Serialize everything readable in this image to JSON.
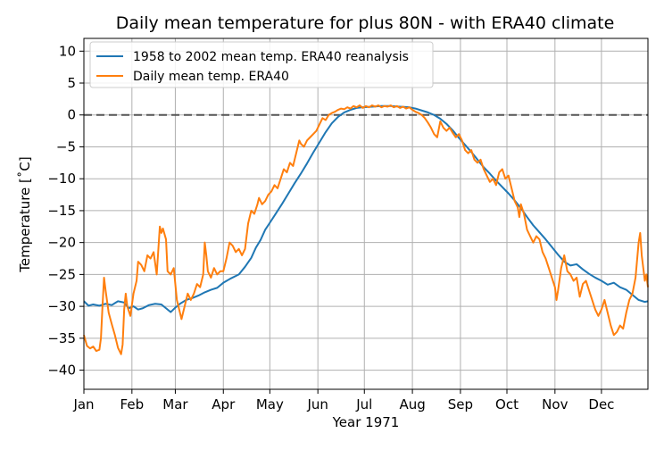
{
  "chart_data": {
    "type": "line",
    "title": "Daily mean temperature for plus 80N - with ERA40 climate",
    "xlabel": "Year 1971",
    "ylabel": "Temperature [$^\\circ$C]",
    "ylabel_display": "Temperature [˚C]",
    "xlim": [
      0,
      364
    ],
    "ylim": [
      -43,
      12
    ],
    "x_ticks": [
      {
        "day": 0,
        "label": "Jan"
      },
      {
        "day": 31,
        "label": "Feb"
      },
      {
        "day": 59,
        "label": "Mar"
      },
      {
        "day": 90,
        "label": "Apr"
      },
      {
        "day": 120,
        "label": "May"
      },
      {
        "day": 151,
        "label": "Jun"
      },
      {
        "day": 181,
        "label": "Jul"
      },
      {
        "day": 212,
        "label": "Aug"
      },
      {
        "day": 243,
        "label": "Sep"
      },
      {
        "day": 273,
        "label": "Oct"
      },
      {
        "day": 304,
        "label": "Nov"
      },
      {
        "day": 334,
        "label": "Dec"
      }
    ],
    "y_ticks": [
      10,
      5,
      0,
      -5,
      -10,
      -15,
      -20,
      -25,
      -30,
      -35,
      -40
    ],
    "grid": true,
    "legend_position": "upper-left",
    "reference_line": {
      "y": 0,
      "style": "dashed",
      "color": "#555555"
    },
    "series": [
      {
        "name": "1958 to 2002 mean temp. ERA40 reanalysis",
        "color": "#1f77b4",
        "points": [
          [
            0,
            -29.2
          ],
          [
            3,
            -29.9
          ],
          [
            6,
            -29.7
          ],
          [
            10,
            -29.9
          ],
          [
            14,
            -29.6
          ],
          [
            18,
            -29.8
          ],
          [
            22,
            -29.2
          ],
          [
            26,
            -29.4
          ],
          [
            29,
            -30.3
          ],
          [
            32,
            -30.0
          ],
          [
            35,
            -30.5
          ],
          [
            38,
            -30.3
          ],
          [
            42,
            -29.8
          ],
          [
            46,
            -29.6
          ],
          [
            50,
            -29.7
          ],
          [
            53,
            -30.3
          ],
          [
            56,
            -30.9
          ],
          [
            59,
            -30.2
          ],
          [
            62,
            -29.6
          ],
          [
            66,
            -29.0
          ],
          [
            70,
            -28.7
          ],
          [
            74,
            -28.3
          ],
          [
            78,
            -27.8
          ],
          [
            82,
            -27.4
          ],
          [
            86,
            -27.1
          ],
          [
            90,
            -26.3
          ],
          [
            95,
            -25.6
          ],
          [
            100,
            -25.0
          ],
          [
            104,
            -23.8
          ],
          [
            108,
            -22.4
          ],
          [
            111,
            -20.8
          ],
          [
            114,
            -19.6
          ],
          [
            117,
            -18.0
          ],
          [
            120,
            -16.9
          ],
          [
            124,
            -15.4
          ],
          [
            128,
            -13.9
          ],
          [
            132,
            -12.3
          ],
          [
            136,
            -10.7
          ],
          [
            140,
            -9.2
          ],
          [
            144,
            -7.6
          ],
          [
            148,
            -5.9
          ],
          [
            152,
            -4.3
          ],
          [
            156,
            -2.7
          ],
          [
            160,
            -1.3
          ],
          [
            164,
            -0.3
          ],
          [
            168,
            0.4
          ],
          [
            172,
            0.8
          ],
          [
            176,
            1.1
          ],
          [
            180,
            1.2
          ],
          [
            186,
            1.3
          ],
          [
            192,
            1.4
          ],
          [
            198,
            1.4
          ],
          [
            204,
            1.3
          ],
          [
            210,
            1.2
          ],
          [
            214,
            1.0
          ],
          [
            218,
            0.7
          ],
          [
            222,
            0.4
          ],
          [
            226,
            0.0
          ],
          [
            230,
            -0.6
          ],
          [
            234,
            -1.4
          ],
          [
            238,
            -2.4
          ],
          [
            242,
            -3.6
          ],
          [
            246,
            -4.7
          ],
          [
            250,
            -5.8
          ],
          [
            254,
            -7.0
          ],
          [
            258,
            -8.2
          ],
          [
            262,
            -9.2
          ],
          [
            266,
            -10.3
          ],
          [
            270,
            -11.3
          ],
          [
            274,
            -12.3
          ],
          [
            278,
            -13.4
          ],
          [
            282,
            -14.6
          ],
          [
            286,
            -16.0
          ],
          [
            290,
            -17.3
          ],
          [
            294,
            -18.4
          ],
          [
            298,
            -19.5
          ],
          [
            302,
            -20.7
          ],
          [
            306,
            -21.9
          ],
          [
            310,
            -23.0
          ],
          [
            314,
            -23.6
          ],
          [
            318,
            -23.4
          ],
          [
            322,
            -24.2
          ],
          [
            326,
            -24.9
          ],
          [
            330,
            -25.5
          ],
          [
            334,
            -26.0
          ],
          [
            338,
            -26.6
          ],
          [
            342,
            -26.3
          ],
          [
            346,
            -27.0
          ],
          [
            350,
            -27.4
          ],
          [
            354,
            -28.2
          ],
          [
            358,
            -29.0
          ],
          [
            362,
            -29.3
          ],
          [
            364,
            -29.2
          ]
        ]
      },
      {
        "name": "Daily mean temp. ERA40",
        "color": "#ff7f0e",
        "points": [
          [
            0,
            -34.5
          ],
          [
            2,
            -36.2
          ],
          [
            4,
            -36.6
          ],
          [
            6,
            -36.3
          ],
          [
            8,
            -37.0
          ],
          [
            10,
            -36.8
          ],
          [
            11,
            -35.0
          ],
          [
            12,
            -30.0
          ],
          [
            13,
            -25.5
          ],
          [
            14,
            -27.5
          ],
          [
            16,
            -31.0
          ],
          [
            18,
            -32.8
          ],
          [
            20,
            -34.5
          ],
          [
            22,
            -36.5
          ],
          [
            24,
            -37.5
          ],
          [
            25,
            -36.0
          ],
          [
            26,
            -30.5
          ],
          [
            27,
            -28.0
          ],
          [
            28,
            -30.0
          ],
          [
            30,
            -31.5
          ],
          [
            32,
            -28.0
          ],
          [
            34,
            -26.0
          ],
          [
            35,
            -23.0
          ],
          [
            37,
            -23.5
          ],
          [
            39,
            -24.5
          ],
          [
            41,
            -22.0
          ],
          [
            43,
            -22.5
          ],
          [
            45,
            -21.5
          ],
          [
            47,
            -25.0
          ],
          [
            49,
            -17.5
          ],
          [
            50,
            -18.5
          ],
          [
            51,
            -17.8
          ],
          [
            53,
            -19.5
          ],
          [
            54,
            -24.5
          ],
          [
            56,
            -25.0
          ],
          [
            58,
            -24.0
          ],
          [
            60,
            -29.0
          ],
          [
            62,
            -31.0
          ],
          [
            63,
            -32.0
          ],
          [
            65,
            -30.0
          ],
          [
            67,
            -28.0
          ],
          [
            69,
            -29.0
          ],
          [
            71,
            -28.0
          ],
          [
            73,
            -26.5
          ],
          [
            75,
            -27.0
          ],
          [
            77,
            -25.0
          ],
          [
            78,
            -20.0
          ],
          [
            79,
            -22.0
          ],
          [
            80,
            -24.5
          ],
          [
            82,
            -25.5
          ],
          [
            84,
            -24.0
          ],
          [
            86,
            -25.0
          ],
          [
            88,
            -24.5
          ],
          [
            90,
            -24.5
          ],
          [
            92,
            -22.5
          ],
          [
            94,
            -20.0
          ],
          [
            96,
            -20.5
          ],
          [
            98,
            -21.5
          ],
          [
            100,
            -21.0
          ],
          [
            102,
            -22.0
          ],
          [
            104,
            -21.0
          ],
          [
            106,
            -17.0
          ],
          [
            108,
            -15.0
          ],
          [
            110,
            -15.5
          ],
          [
            112,
            -14.0
          ],
          [
            113,
            -13.0
          ],
          [
            115,
            -14.0
          ],
          [
            117,
            -13.5
          ],
          [
            119,
            -12.5
          ],
          [
            121,
            -12.0
          ],
          [
            123,
            -11.0
          ],
          [
            125,
            -11.5
          ],
          [
            127,
            -10.0
          ],
          [
            129,
            -8.5
          ],
          [
            131,
            -9.0
          ],
          [
            133,
            -7.5
          ],
          [
            135,
            -8.0
          ],
          [
            137,
            -6.0
          ],
          [
            139,
            -4.0
          ],
          [
            140,
            -4.5
          ],
          [
            142,
            -5.0
          ],
          [
            144,
            -4.0
          ],
          [
            146,
            -3.5
          ],
          [
            148,
            -3.0
          ],
          [
            150,
            -2.5
          ],
          [
            152,
            -1.5
          ],
          [
            154,
            -0.5
          ],
          [
            156,
            -0.8
          ],
          [
            158,
            0.0
          ],
          [
            160,
            0.3
          ],
          [
            162,
            0.5
          ],
          [
            164,
            0.8
          ],
          [
            166,
            1.0
          ],
          [
            168,
            0.9
          ],
          [
            170,
            1.2
          ],
          [
            172,
            1.0
          ],
          [
            174,
            1.4
          ],
          [
            176,
            1.2
          ],
          [
            178,
            1.5
          ],
          [
            180,
            1.1
          ],
          [
            182,
            1.4
          ],
          [
            184,
            1.2
          ],
          [
            186,
            1.5
          ],
          [
            188,
            1.3
          ],
          [
            190,
            1.5
          ],
          [
            192,
            1.2
          ],
          [
            194,
            1.4
          ],
          [
            196,
            1.3
          ],
          [
            198,
            1.5
          ],
          [
            200,
            1.2
          ],
          [
            202,
            1.4
          ],
          [
            204,
            1.1
          ],
          [
            206,
            1.3
          ],
          [
            208,
            1.0
          ],
          [
            210,
            1.2
          ],
          [
            212,
            0.8
          ],
          [
            214,
            0.5
          ],
          [
            216,
            0.3
          ],
          [
            218,
            0.0
          ],
          [
            220,
            -0.5
          ],
          [
            222,
            -1.2
          ],
          [
            224,
            -2.0
          ],
          [
            226,
            -3.0
          ],
          [
            228,
            -3.5
          ],
          [
            230,
            -1.0
          ],
          [
            232,
            -2.0
          ],
          [
            234,
            -2.5
          ],
          [
            236,
            -2.0
          ],
          [
            238,
            -2.8
          ],
          [
            240,
            -3.5
          ],
          [
            242,
            -3.0
          ],
          [
            244,
            -4.0
          ],
          [
            246,
            -5.5
          ],
          [
            248,
            -6.0
          ],
          [
            250,
            -5.5
          ],
          [
            252,
            -7.0
          ],
          [
            254,
            -7.5
          ],
          [
            256,
            -7.0
          ],
          [
            258,
            -8.5
          ],
          [
            260,
            -9.5
          ],
          [
            262,
            -10.5
          ],
          [
            264,
            -10.0
          ],
          [
            266,
            -11.0
          ],
          [
            268,
            -9.0
          ],
          [
            270,
            -8.5
          ],
          [
            272,
            -10.0
          ],
          [
            274,
            -9.5
          ],
          [
            276,
            -11.5
          ],
          [
            278,
            -13.5
          ],
          [
            280,
            -14.5
          ],
          [
            281,
            -16.0
          ],
          [
            282,
            -14.0
          ],
          [
            284,
            -15.5
          ],
          [
            286,
            -18.0
          ],
          [
            288,
            -19.0
          ],
          [
            290,
            -20.0
          ],
          [
            292,
            -19.0
          ],
          [
            294,
            -19.5
          ],
          [
            296,
            -21.5
          ],
          [
            298,
            -22.5
          ],
          [
            300,
            -24.0
          ],
          [
            302,
            -25.5
          ],
          [
            304,
            -27.0
          ],
          [
            305,
            -29.0
          ],
          [
            306,
            -27.5
          ],
          [
            308,
            -24.0
          ],
          [
            310,
            -22.0
          ],
          [
            312,
            -24.5
          ],
          [
            314,
            -25.0
          ],
          [
            316,
            -26.0
          ],
          [
            318,
            -25.5
          ],
          [
            320,
            -28.5
          ],
          [
            322,
            -26.5
          ],
          [
            324,
            -26.0
          ],
          [
            326,
            -27.5
          ],
          [
            328,
            -29.0
          ],
          [
            330,
            -30.5
          ],
          [
            332,
            -31.5
          ],
          [
            334,
            -30.5
          ],
          [
            336,
            -29.0
          ],
          [
            338,
            -31.0
          ],
          [
            340,
            -33.0
          ],
          [
            342,
            -34.5
          ],
          [
            344,
            -34.0
          ],
          [
            346,
            -33.0
          ],
          [
            348,
            -33.5
          ],
          [
            350,
            -31.0
          ],
          [
            352,
            -29.0
          ],
          [
            354,
            -28.0
          ],
          [
            356,
            -25.5
          ],
          [
            358,
            -20.0
          ],
          [
            359,
            -18.5
          ],
          [
            360,
            -22.0
          ],
          [
            361,
            -24.0
          ],
          [
            362,
            -26.0
          ],
          [
            363,
            -25.0
          ],
          [
            364,
            -27.0
          ]
        ]
      }
    ]
  }
}
